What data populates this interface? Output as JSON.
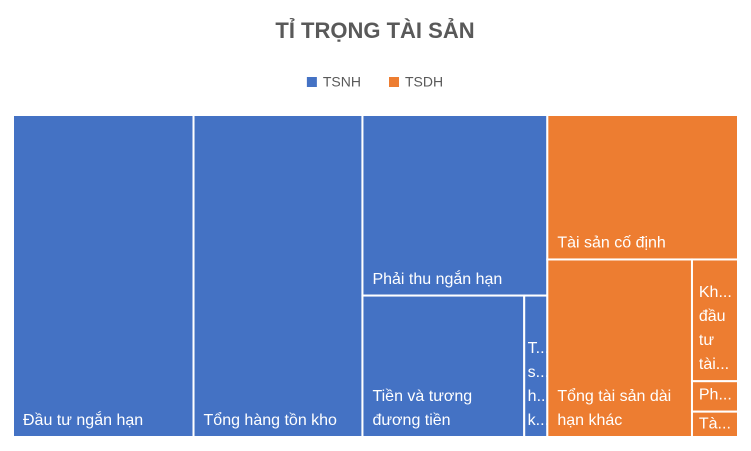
{
  "chart_data": {
    "type": "treemap",
    "title": "TỈ TRỌNG TÀI SẢN",
    "legend": "top",
    "series": [
      {
        "name": "TSNH",
        "color": "#4472c4",
        "categories": [
          "Đầu tư ngắn hạn",
          "Tổng hàng tồn kho",
          "Phải thu ngắn hạn",
          "Tiền và tương đương tiền",
          "T... s... h... k..."
        ],
        "values": [
          24.9,
          23.3,
          14.3,
          9.8,
          1.4
        ]
      },
      {
        "name": "TSDH",
        "color": "#ed7d31",
        "categories": [
          "Tài sản cố định",
          "Tổng tài sản dài hạn khác",
          "Kh... đầu tư tài...",
          "Ph...",
          "Tà..."
        ],
        "values": [
          11.8,
          11.0,
          2.4,
          0.6,
          0.5
        ]
      }
    ]
  }
}
